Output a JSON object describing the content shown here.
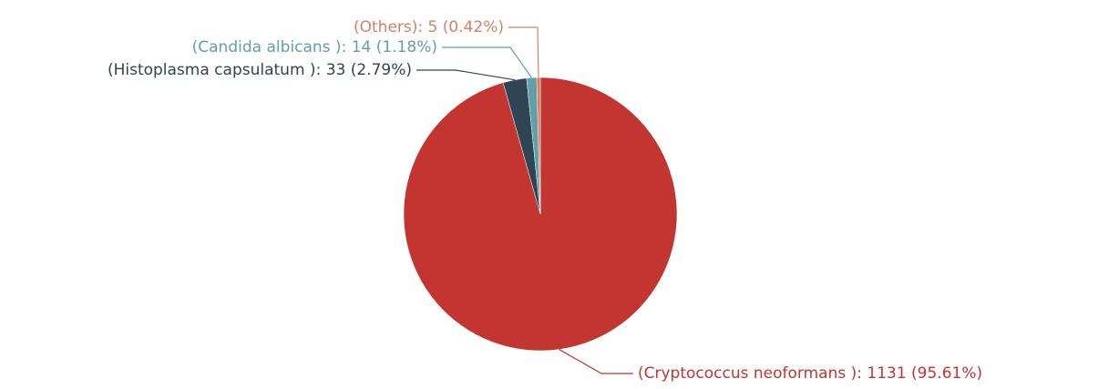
{
  "chart_data": {
    "type": "pie",
    "categories": [
      "(Cryptococcus neoformans )",
      "(Histoplasma capsulatum )",
      "(Candida albicans )",
      "(Others)"
    ],
    "values": [
      1131,
      33,
      14,
      5
    ],
    "value_labels": [
      ": 1131 (95.61%)",
      ": 33 (2.79%)",
      ": 14 (1.18%)",
      ": 5 (0.42%)"
    ],
    "colors": [
      "#c23531",
      "#2f4554",
      "#61a0a8",
      "#d48265"
    ]
  }
}
